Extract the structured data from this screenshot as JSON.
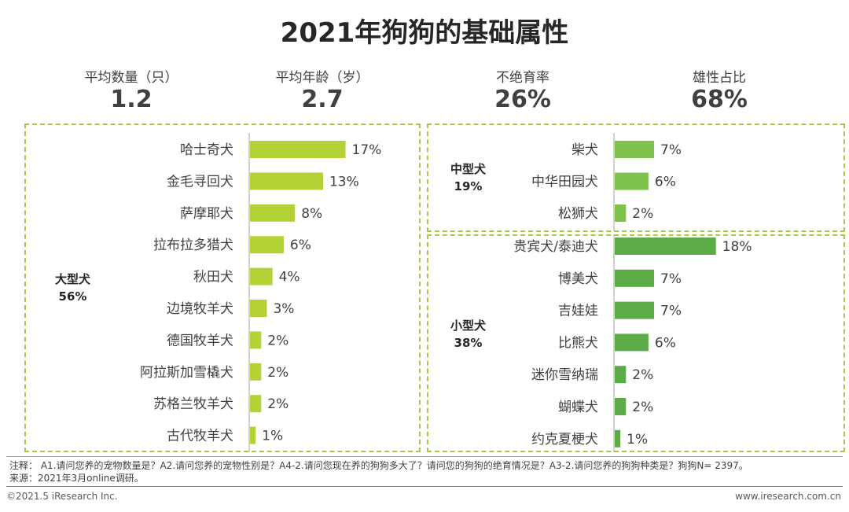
{
  "title": "2021年狗狗的基础属性",
  "stats": [
    {
      "label": "平均数量（只）",
      "value": "1.2"
    },
    {
      "label": "平均年龄（岁）",
      "value": "2.7"
    },
    {
      "label": "不绝育率",
      "value": "26%"
    },
    {
      "label": "雄性占比",
      "value": "68%"
    }
  ],
  "groups": {
    "large": {
      "name": "大型犬",
      "share": "56%"
    },
    "medium": {
      "name": "中型犬",
      "share": "19%"
    },
    "small": {
      "name": "小型犬",
      "share": "38%"
    }
  },
  "colors": {
    "large": "#b2d235",
    "medium": "#7dc24b",
    "small": "#5bab46",
    "border": "#a5c94a"
  },
  "chart_data": [
    {
      "type": "bar",
      "orientation": "horizontal",
      "title": "大型犬 56%",
      "categories": [
        "哈士奇犬",
        "金毛寻回犬",
        "萨摩耶犬",
        "拉布拉多猎犬",
        "秋田犬",
        "边境牧羊犬",
        "德国牧羊犬",
        "阿拉斯加雪橇犬",
        "苏格兰牧羊犬",
        "古代牧羊犬"
      ],
      "values": [
        17,
        13,
        8,
        6,
        4,
        3,
        2,
        2,
        2,
        1
      ],
      "labels": [
        "17%",
        "13%",
        "8%",
        "6%",
        "4%",
        "3%",
        "2%",
        "2%",
        "2%",
        "1%"
      ],
      "unit": "%"
    },
    {
      "type": "bar",
      "orientation": "horizontal",
      "title": "中型犬 19%",
      "categories": [
        "柴犬",
        "中华田园犬",
        "松狮犬"
      ],
      "values": [
        7,
        6,
        2
      ],
      "labels": [
        "7%",
        "6%",
        "2%"
      ],
      "unit": "%"
    },
    {
      "type": "bar",
      "orientation": "horizontal",
      "title": "小型犬 38%",
      "categories": [
        "贵宾犬/泰迪犬",
        "博美犬",
        "吉娃娃",
        "比熊犬",
        "迷你雪纳瑞",
        "蝴蝶犬",
        "约克夏梗犬"
      ],
      "values": [
        18,
        7,
        7,
        6,
        2,
        2,
        1
      ],
      "labels": [
        "18%",
        "7%",
        "7%",
        "6%",
        "2%",
        "2%",
        "1%"
      ],
      "unit": "%"
    }
  ],
  "notes": {
    "line1": "注释： A1.请问您养的宠物数量是？A2.请问您养的宠物性别是？A4-2.请问您现在养的狗狗多大了？请问您的狗狗的绝育情况是？A3-2.请问您养的狗狗种类是？狗狗N= 2397。",
    "line2": "来源：2021年3月online调研。"
  },
  "footer": {
    "left": "©2021.5 iResearch Inc.",
    "right": "www.iresearch.com.cn"
  }
}
